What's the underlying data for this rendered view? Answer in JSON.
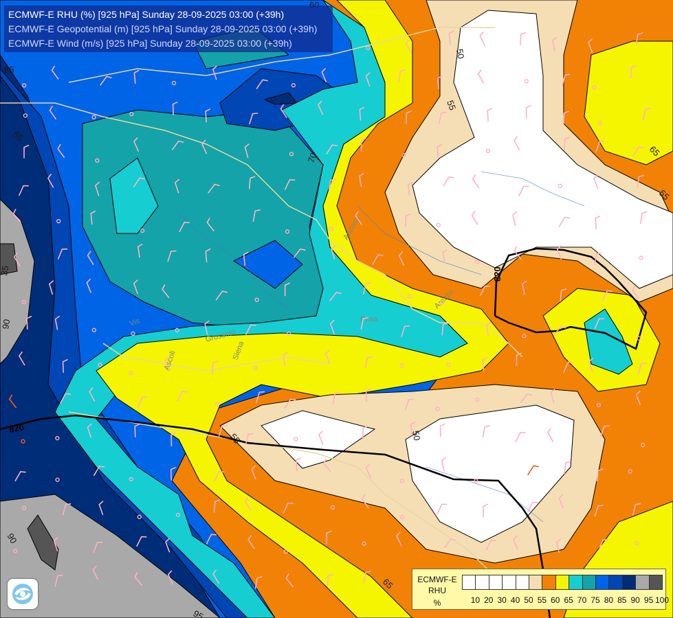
{
  "header": {
    "line1": "ECMWF-E RHU (%) [925 hPa] Sunday 28-09-2025 03:00 (+39h)",
    "line2": "ECMWF-E Geopotential (m) [925 hPa] Sunday 28-09-2025 03:00 (+39h)",
    "line3": "ECMWF-E Wind (m/s) [925 hPa] Sunday 28-09-2025 03:00 (+39h)"
  },
  "legend": {
    "title_line1": "ECMWF-E",
    "title_line2": "RHU",
    "title_line3": "%",
    "ticks": [
      "10",
      "20",
      "30",
      "40",
      "50",
      "55",
      "60",
      "65",
      "70",
      "75",
      "80",
      "85",
      "90",
      "95",
      "100"
    ],
    "colors": [
      "#ffffff",
      "#ffffff",
      "#ffffff",
      "#ffffff",
      "#ffffff",
      "#f5deb3",
      "#f28205",
      "#f5f500",
      "#16cdd2",
      "#14a3a8",
      "#0064e6",
      "#0046b4",
      "#002d78",
      "#a9a9a9",
      "#555555"
    ]
  },
  "contour_labels": [
    "60",
    "85",
    "70",
    "55",
    "50",
    "65",
    "55",
    "35",
    "90",
    "65",
    "55",
    "50",
    "65",
    "90",
    "95"
  ],
  "geopotential_labels": [
    "820",
    "820"
  ],
  "place_labels": [
    "Vis",
    "Grosseto",
    "Siena",
    "Pesa",
    "Arezzo",
    "Ancona",
    "Ascoli"
  ],
  "colors": {
    "white": "#ffffff",
    "wheat": "#f5deb3",
    "orange": "#f28205",
    "yellow": "#f5f500",
    "cyan": "#16cdd2",
    "teal": "#14a3a8",
    "blue": "#0064e6",
    "mid_blue": "#0046b4",
    "navy": "#002d78",
    "grey": "#a9a9a9",
    "dark_grey": "#555555",
    "wind_barb": "#ffb0c8",
    "wind_barb_strong": "#ff5a14"
  }
}
